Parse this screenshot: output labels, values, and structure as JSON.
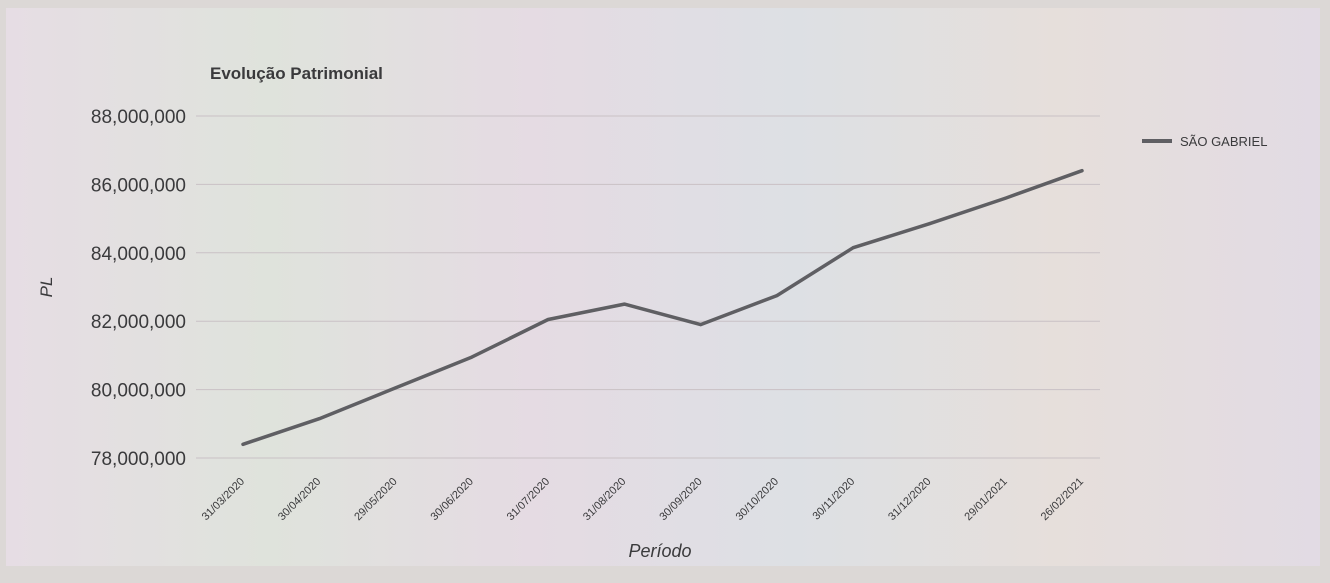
{
  "chart_data": {
    "type": "line",
    "title": "Evolução Patrimonial",
    "xlabel": "Período",
    "ylabel": "PL",
    "categories": [
      "31/03/2020",
      "30/04/2020",
      "29/05/2020",
      "30/06/2020",
      "31/07/2020",
      "31/08/2020",
      "30/09/2020",
      "30/10/2020",
      "30/11/2020",
      "31/12/2020",
      "29/01/2021",
      "26/02/2021"
    ],
    "series": [
      {
        "name": "SÃO GABRIEL",
        "values": [
          78400000,
          79150000,
          80050000,
          80950000,
          82050000,
          82500000,
          81900000,
          82750000,
          84150000,
          84850000,
          85600000,
          86400000
        ]
      }
    ],
    "y_ticks": [
      "78,000,000",
      "80,000,000",
      "82,000,000",
      "84,000,000",
      "86,000,000",
      "88,000,000"
    ],
    "ylim": [
      77000000,
      88000000
    ],
    "grid": true,
    "legend_position": "right",
    "colors": {
      "line": "#5f5f63",
      "grid": "#c9c1c5",
      "text": "#3a3a3c",
      "background": "#e2dcdf"
    }
  }
}
